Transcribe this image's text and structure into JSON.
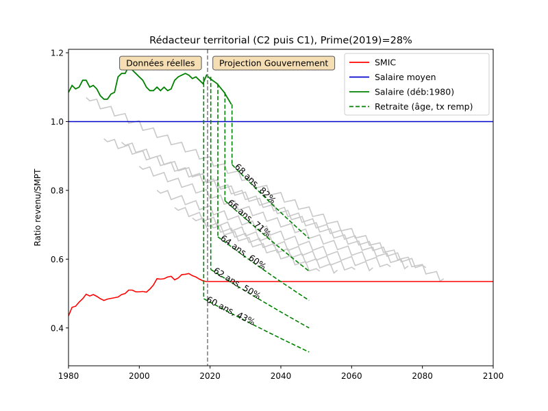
{
  "chart_data": {
    "type": "line",
    "title": "Rédacteur territorial (C2 puis C1), Prime(2019)=28%",
    "xlabel": "",
    "ylabel": "Ratio revenu/SMPT",
    "xlim": [
      1980,
      2100
    ],
    "ylim": [
      0.29,
      1.21
    ],
    "xticks": [
      1980,
      2000,
      2020,
      2040,
      2060,
      2080,
      2100
    ],
    "yticks": [
      0.4,
      0.6,
      0.8,
      1.0,
      1.2
    ],
    "xtick_labels": [
      "1980",
      "2000",
      "2020",
      "2040",
      "2060",
      "2080",
      "2100"
    ],
    "ytick_labels": [
      "0.4",
      "0.6",
      "0.8",
      "1.0",
      "1.2"
    ],
    "grid": false,
    "legend_position": "top-right",
    "legend": [
      "SMIC",
      "Salaire moyen",
      "Salaire (déb:1980)",
      "Retraite (âge, tx remp)"
    ],
    "colors": {
      "smic": "#ff0000",
      "salaire_moyen": "#0000cc",
      "salaire": "#008000",
      "retraite": "#008000",
      "other_careers": "#c8c8c8",
      "vline": "#808080",
      "annotation_fill": "#f5deb3"
    },
    "vline_x": 2019.3,
    "annotations": [
      {
        "text": "Données réelles",
        "x": 2006,
        "y": 1.17
      },
      {
        "text": "Projection Gouvernement",
        "x": 2038,
        "y": 1.17
      }
    ],
    "series": [
      {
        "name": "SMIC",
        "style": "solid",
        "x": [
          1980,
          1981,
          1982,
          1983,
          1984,
          1985,
          1986,
          1987,
          1988,
          1989,
          1990,
          1991,
          1992,
          1993,
          1994,
          1995,
          1996,
          1997,
          1998,
          1999,
          2000,
          2001,
          2002,
          2003,
          2004,
          2005,
          2006,
          2007,
          2008,
          2009,
          2010,
          2011,
          2012,
          2013,
          2014,
          2015,
          2016,
          2017,
          2018,
          2019,
          2020,
          2040,
          2060,
          2080,
          2100
        ],
        "y": [
          0.435,
          0.46,
          0.463,
          0.475,
          0.485,
          0.498,
          0.493,
          0.497,
          0.492,
          0.485,
          0.48,
          0.484,
          0.486,
          0.488,
          0.49,
          0.497,
          0.5,
          0.51,
          0.51,
          0.505,
          0.505,
          0.506,
          0.504,
          0.513,
          0.525,
          0.543,
          0.542,
          0.543,
          0.548,
          0.55,
          0.54,
          0.545,
          0.555,
          0.556,
          0.558,
          0.552,
          0.548,
          0.542,
          0.537,
          0.535,
          0.535,
          0.535,
          0.535,
          0.535,
          0.535
        ]
      },
      {
        "name": "Salaire moyen",
        "style": "solid",
        "x": [
          1980,
          2100
        ],
        "y": [
          1.0,
          1.0
        ]
      },
      {
        "name": "Salaire (déb:1980)",
        "style": "solid",
        "x": [
          1980,
          1981,
          1982,
          1983,
          1984,
          1985,
          1986,
          1987,
          1988,
          1989,
          1990,
          1991,
          1992,
          1993,
          1994,
          1995,
          1996,
          1997,
          1998,
          1999,
          2000,
          2001,
          2002,
          2003,
          2004,
          2005,
          2006,
          2007,
          2008,
          2009,
          2010,
          2011,
          2012,
          2013,
          2014,
          2015,
          2016,
          2017,
          2018,
          2019,
          2020,
          2022,
          2024,
          2026
        ],
        "y": [
          1.085,
          1.105,
          1.095,
          1.1,
          1.12,
          1.12,
          1.1,
          1.105,
          1.095,
          1.075,
          1.065,
          1.065,
          1.08,
          1.085,
          1.13,
          1.14,
          1.14,
          1.16,
          1.15,
          1.14,
          1.13,
          1.12,
          1.1,
          1.09,
          1.09,
          1.1,
          1.09,
          1.1,
          1.09,
          1.095,
          1.12,
          1.13,
          1.135,
          1.14,
          1.135,
          1.125,
          1.13,
          1.12,
          1.11,
          1.135,
          1.125,
          1.11,
          1.085,
          1.05
        ]
      }
    ],
    "retraites": [
      {
        "label": "60 ans, 43%",
        "x_retire": 2018.2,
        "y_start": 1.13,
        "y_pension": 0.485,
        "end_x": 2048,
        "end_y": 0.33
      },
      {
        "label": "62 ans, 50%",
        "x_retire": 2020.2,
        "y_start": 1.13,
        "y_pension": 0.57,
        "end_x": 2048,
        "end_y": 0.4
      },
      {
        "label": "64 ans, 60%",
        "x_retire": 2022.2,
        "y_start": 1.11,
        "y_pension": 0.665,
        "end_x": 2048,
        "end_y": 0.48
      },
      {
        "label": "66 ans, 71%",
        "x_retire": 2024.2,
        "y_start": 1.085,
        "y_pension": 0.77,
        "end_x": 2048,
        "end_y": 0.565
      },
      {
        "label": "68 ans, 82%",
        "x_retire": 2026.2,
        "y_start": 1.05,
        "y_pension": 0.875,
        "end_x": 2048,
        "end_y": 0.66
      }
    ],
    "other_careers": [
      {
        "start_x": 1985,
        "start_y": 1.07,
        "end_x": 2086,
        "end_y": 0.543
      },
      {
        "start_x": 1990,
        "start_y": 0.95,
        "end_x": 2081,
        "end_y": 0.575
      },
      {
        "start_x": 1995,
        "start_y": 0.94,
        "end_x": 2076,
        "end_y": 0.58
      },
      {
        "start_x": 2000,
        "start_y": 0.87,
        "end_x": 2071,
        "end_y": 0.578
      },
      {
        "start_x": 2005,
        "start_y": 0.8,
        "end_x": 2066,
        "end_y": 0.575
      },
      {
        "start_x": 2010,
        "start_y": 0.75,
        "end_x": 2061,
        "end_y": 0.57
      },
      {
        "start_x": 2015,
        "start_y": 0.72,
        "end_x": 2056,
        "end_y": 0.568
      },
      {
        "start_x": 2020,
        "start_y": 0.7,
        "end_x": 2051,
        "end_y": 0.565
      }
    ]
  }
}
